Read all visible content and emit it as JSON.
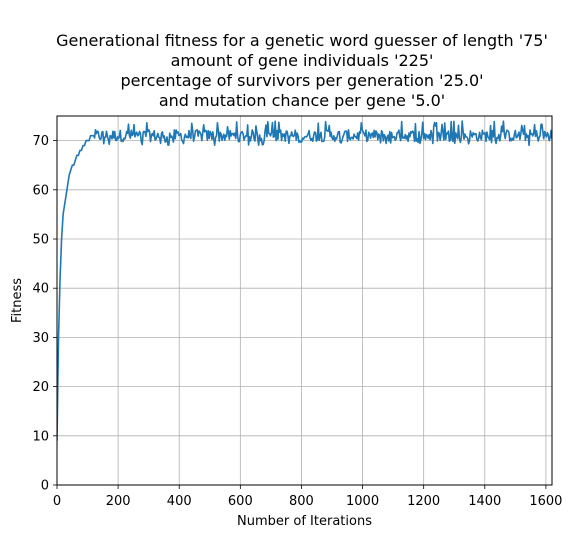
{
  "chart_data": {
    "type": "line",
    "title_lines": [
      "Generational fitness for a genetic word guesser of length '75'",
      "amount of gene individuals '225'",
      "percentage of survivors per generation '25.0'",
      "and mutation chance per gene '5.0'"
    ],
    "xlabel": "Number of Iterations",
    "ylabel": "Fitness",
    "xlim": [
      0,
      1620
    ],
    "ylim": [
      0,
      75
    ],
    "xticks": [
      0,
      200,
      400,
      600,
      800,
      1000,
      1200,
      1400,
      1600
    ],
    "yticks": [
      0,
      10,
      20,
      30,
      40,
      50,
      60,
      70
    ],
    "grid": true,
    "series": [
      {
        "color": "#1f77b4",
        "plateau": {
          "start": 120,
          "end": 1620,
          "level": 71,
          "min": 69,
          "max": 74
        },
        "x": [
          0,
          5,
          10,
          15,
          20,
          25,
          30,
          35,
          40,
          45,
          50,
          55,
          60,
          65,
          70,
          75,
          80,
          85,
          90,
          95,
          100,
          105,
          110,
          115,
          120
        ],
        "y": [
          9,
          30,
          42,
          50,
          55,
          57,
          59,
          61,
          63,
          64,
          65,
          65,
          66,
          67,
          67,
          68,
          68,
          69,
          69,
          70,
          70,
          70,
          71,
          71,
          71
        ]
      }
    ]
  }
}
